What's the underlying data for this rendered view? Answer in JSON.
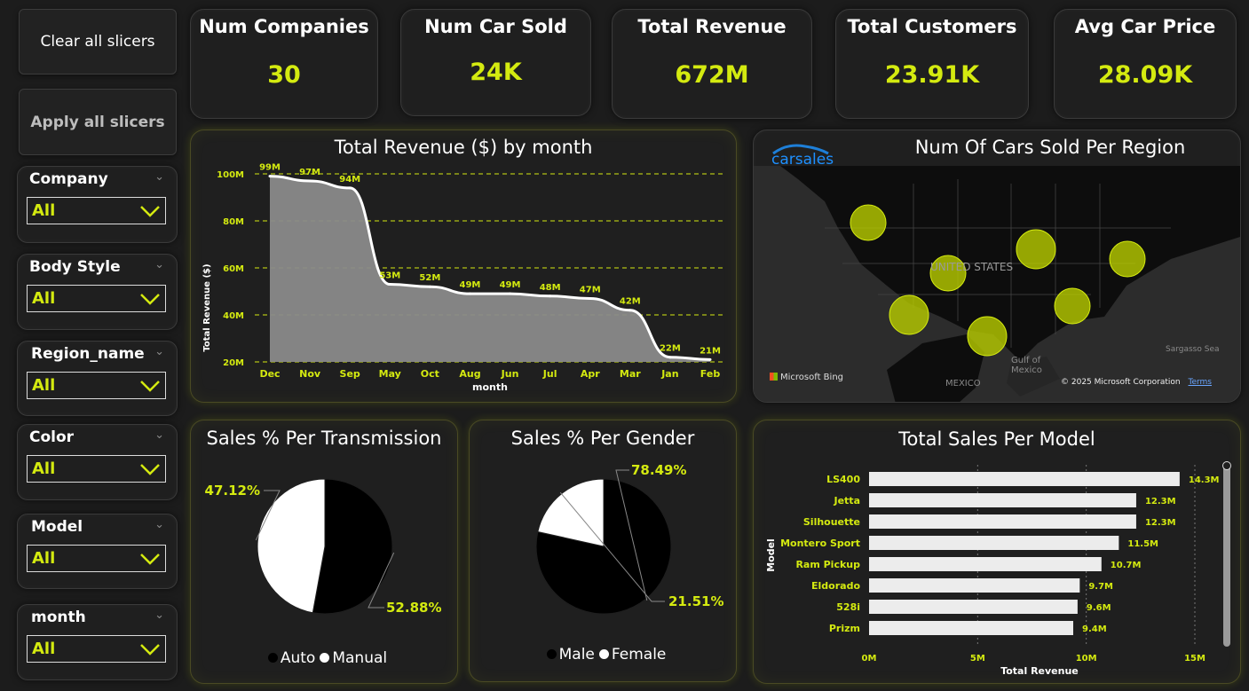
{
  "buttons": {
    "clear": "Clear all slicers",
    "apply": "Apply all slicers"
  },
  "slicers": [
    {
      "label": "Company",
      "value": "All"
    },
    {
      "label": "Body Style",
      "value": "All"
    },
    {
      "label": "Region_name",
      "value": "All"
    },
    {
      "label": "Color",
      "value": "All"
    },
    {
      "label": "Model",
      "value": "All"
    },
    {
      "label": "month",
      "value": "All"
    }
  ],
  "kpis": [
    {
      "title": "Num Companies",
      "value": "30"
    },
    {
      "title": "Num Car Sold",
      "value": "24K"
    },
    {
      "title": "Total Revenue",
      "value": "672M"
    },
    {
      "title": "Total Customers",
      "value": "23.91K"
    },
    {
      "title": "Avg Car Price",
      "value": "28.09K"
    }
  ],
  "revenue_chart": {
    "title": "Total Revenue ($) by month"
  },
  "map": {
    "title": "Num Of Cars Sold Per Region",
    "logo": "carsales",
    "labels": {
      "country": "UNITED STATES",
      "gulf": "Gulf of Mexico",
      "mexico": "MEXICO",
      "sea": "Sargasso Sea"
    },
    "attribution": "Microsoft Bing",
    "copyright": "© 2025 Microsoft Corporation",
    "terms": "Terms"
  },
  "transmission": {
    "title": "Sales % Per Transmission",
    "legend_auto": "Auto",
    "legend_manual": "Manual"
  },
  "gender": {
    "title": "Sales % Per Gender",
    "legend_male": "Male",
    "legend_female": "Female"
  },
  "model_chart": {
    "title": "Total Sales Per Model"
  },
  "colors": {
    "accent": "#d4ea10",
    "panel": "#1f1f1f",
    "bg": "#1c1c1c"
  },
  "chart_data": [
    {
      "type": "area",
      "title": "Total Revenue ($) by month",
      "xlabel": "month",
      "ylabel": "Total Revenue ($)",
      "categories": [
        "Dec",
        "Nov",
        "Sep",
        "May",
        "Oct",
        "Aug",
        "Jun",
        "Jul",
        "Apr",
        "Mar",
        "Jan",
        "Feb"
      ],
      "values": [
        99,
        97,
        94,
        53,
        52,
        49,
        49,
        48,
        47,
        42,
        22,
        21
      ],
      "data_labels": [
        "99M",
        "97M",
        "94M",
        "53M",
        "52M",
        "49M",
        "49M",
        "48M",
        "47M",
        "42M",
        "22M",
        "21M"
      ],
      "ylim": [
        20,
        100
      ],
      "yticks": [
        "20M",
        "40M",
        "60M",
        "80M",
        "100M"
      ],
      "grid": true
    },
    {
      "type": "pie",
      "title": "Sales % Per Transmission",
      "labels": [
        "Auto",
        "Manual"
      ],
      "values": [
        52.88,
        47.12
      ],
      "data_labels": [
        "52.88%",
        "47.12%"
      ],
      "colors": [
        "#000000",
        "#ffffff"
      ],
      "legend": "bottom"
    },
    {
      "type": "pie",
      "title": "Sales % Per Gender",
      "labels": [
        "Male",
        "Female"
      ],
      "values": [
        78.49,
        21.51
      ],
      "data_labels": [
        "78.49%",
        "21.51%"
      ],
      "colors": [
        "#000000",
        "#ffffff"
      ],
      "legend": "bottom"
    },
    {
      "type": "bar",
      "title": "Total Sales Per Model",
      "xlabel": "Total Revenue",
      "ylabel": "Model",
      "categories": [
        "LS400",
        "Jetta",
        "Silhouette",
        "Montero Sport",
        "Ram Pickup",
        "Eldorado",
        "528i",
        "Prizm"
      ],
      "values": [
        14.3,
        12.3,
        12.3,
        11.5,
        10.7,
        9.7,
        9.6,
        9.4
      ],
      "data_labels": [
        "14.3M",
        "12.3M",
        "12.3M",
        "11.5M",
        "10.7M",
        "9.7M",
        "9.6M",
        "9.4M"
      ],
      "xlim": [
        0,
        15
      ],
      "xticks": [
        "0M",
        "5M",
        "10M",
        "15M"
      ],
      "orientation": "horizontal"
    }
  ]
}
